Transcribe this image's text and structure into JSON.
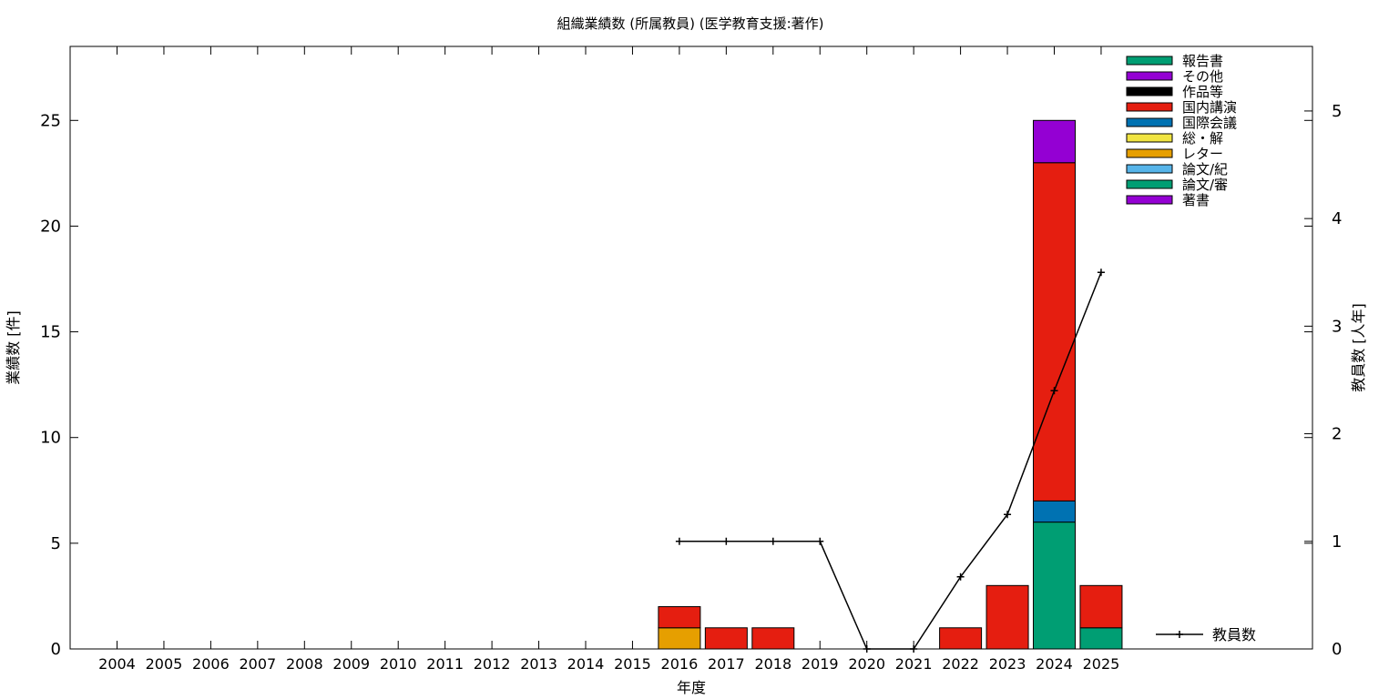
{
  "chart_data": {
    "type": "bar",
    "title": "組織業績数 (所属教員) (医学教育支援:著作)",
    "xlabel": "年度",
    "ylabel": "業績数 [件]",
    "y2label": "教員数 [人年]",
    "ylim": [
      0,
      28.5
    ],
    "y2lim": [
      0,
      5.6
    ],
    "yticks": [
      "0",
      "5",
      "10",
      "15",
      "20",
      "25"
    ],
    "y2ticks": [
      "0",
      "1",
      "2",
      "3",
      "4",
      "5"
    ],
    "categories": [
      "2004",
      "2005",
      "2006",
      "2007",
      "2008",
      "2009",
      "2010",
      "2011",
      "2012",
      "2013",
      "2014",
      "2015",
      "2016",
      "2017",
      "2018",
      "2019",
      "2020",
      "2021",
      "2022",
      "2023",
      "2024",
      "2025"
    ],
    "stacked": true,
    "grid": false,
    "legend_position": "top-right",
    "series": [
      {
        "name": "論文/審",
        "color": "#009e73",
        "values": [
          0,
          0,
          0,
          0,
          0,
          0,
          0,
          0,
          0,
          0,
          0,
          0,
          0,
          0,
          0,
          0,
          0,
          0,
          0,
          0,
          6,
          1
        ]
      },
      {
        "name": "論文/紀",
        "color": "#56b4e9",
        "values": [
          0,
          0,
          0,
          0,
          0,
          0,
          0,
          0,
          0,
          0,
          0,
          0,
          0,
          0,
          0,
          0,
          0,
          0,
          0,
          0,
          0,
          0
        ]
      },
      {
        "name": "レター",
        "color": "#e69f00",
        "values": [
          0,
          0,
          0,
          0,
          0,
          0,
          0,
          0,
          0,
          0,
          0,
          0,
          1,
          0,
          0,
          0,
          0,
          0,
          0,
          0,
          0,
          0
        ]
      },
      {
        "name": "総・解",
        "color": "#f0e442",
        "values": [
          0,
          0,
          0,
          0,
          0,
          0,
          0,
          0,
          0,
          0,
          0,
          0,
          0,
          0,
          0,
          0,
          0,
          0,
          0,
          0,
          0,
          0
        ]
      },
      {
        "name": "国際会議",
        "color": "#0072b2",
        "values": [
          0,
          0,
          0,
          0,
          0,
          0,
          0,
          0,
          0,
          0,
          0,
          0,
          0,
          0,
          0,
          0,
          0,
          0,
          0,
          0,
          1,
          0
        ]
      },
      {
        "name": "国内講演",
        "color": "#e51e10",
        "values": [
          0,
          0,
          0,
          0,
          0,
          0,
          0,
          0,
          0,
          0,
          0,
          0,
          1,
          1,
          1,
          0,
          0,
          0,
          1,
          3,
          16,
          2
        ]
      },
      {
        "name": "作品等",
        "color": "#000000",
        "values": [
          0,
          0,
          0,
          0,
          0,
          0,
          0,
          0,
          0,
          0,
          0,
          0,
          0,
          0,
          0,
          0,
          0,
          0,
          0,
          0,
          0,
          0
        ]
      },
      {
        "name": "その他",
        "color": "#9400d3",
        "values": [
          0,
          0,
          0,
          0,
          0,
          0,
          0,
          0,
          0,
          0,
          0,
          0,
          0,
          0,
          0,
          0,
          0,
          0,
          0,
          0,
          2,
          0
        ]
      },
      {
        "name": "報告書",
        "color": "#009e73",
        "values": [
          0,
          0,
          0,
          0,
          0,
          0,
          0,
          0,
          0,
          0,
          0,
          0,
          0,
          0,
          0,
          0,
          0,
          0,
          0,
          0,
          0,
          0
        ]
      },
      {
        "name": "著書",
        "color": "#9400d3",
        "values": [
          0,
          0,
          0,
          0,
          0,
          0,
          0,
          0,
          0,
          0,
          0,
          0,
          0,
          0,
          0,
          0,
          0,
          0,
          0,
          0,
          0,
          0
        ]
      }
    ],
    "legend_order": [
      "報告書",
      "その他",
      "作品等",
      "国内講演",
      "国際会議",
      "総・解",
      "レター",
      "論文/紀",
      "論文/審",
      "著書"
    ],
    "line_series": {
      "name": "教員数",
      "color": "#000000",
      "axis": "y2",
      "x": [
        "2016",
        "2017",
        "2018",
        "2019",
        "2020",
        "2021",
        "2022",
        "2023",
        "2024",
        "2025"
      ],
      "values": [
        1,
        1,
        1,
        1,
        0,
        0,
        0.67,
        1.25,
        2.4,
        3.5
      ]
    }
  }
}
